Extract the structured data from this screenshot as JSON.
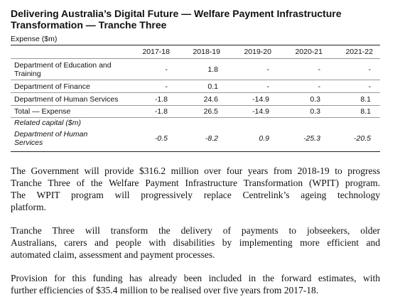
{
  "heading": {
    "line1": "Delivering Australia’s Digital Future — Welfare Payment Infrastructure",
    "line2": "Transformation — Tranche Three"
  },
  "table": {
    "unit_label": "Expense ($m)",
    "years": [
      "2017-18",
      "2018-19",
      "2019-20",
      "2020-21",
      "2021-22"
    ],
    "rows": [
      {
        "label_line1": "Department of Education and",
        "label_line2": "Training",
        "values": [
          "-",
          "1.8",
          "-",
          "-",
          "-"
        ]
      },
      {
        "label_line1": "Department of Finance",
        "label_line2": "",
        "values": [
          "-",
          "0.1",
          "-",
          "-",
          "-"
        ]
      },
      {
        "label_line1": "Department of Human Services",
        "label_line2": "",
        "values": [
          "-1.8",
          "24.6",
          "-14.9",
          "0.3",
          "8.1"
        ]
      },
      {
        "label_line1": "Total — Expense",
        "label_line2": "",
        "values": [
          "-1.8",
          "26.5",
          "-14.9",
          "0.3",
          "8.1"
        ]
      }
    ],
    "related_capital_label": "Related capital ($m)",
    "capital_row": {
      "label_line1": "Department of Human",
      "label_line2": "Services",
      "values": [
        "-0.5",
        "-8.2",
        "0.9",
        "-25.3",
        "-20.5"
      ]
    }
  },
  "paragraphs": [
    {
      "lines": [
        "The Government will provide $316.2 million over four years from 2018-19 to progress",
        "Tranche Three of the Welfare Payment Infrastructure Transformation (WPIT) program.",
        "The WPIT program will progressively replace Centrelink’s ageing technology",
        "platform."
      ]
    },
    {
      "lines": [
        "Tranche Three will transform the delivery of payments to jobseekers, older",
        "Australians, carers and people with disabilities by implementing more efficient and",
        "automated claim, assessment and payment processes."
      ]
    },
    {
      "lines": [
        "Provision for this funding has already been included in the forward estimates, with",
        "further efficiencies of $35.4 million to be realised over five years from 2017-18."
      ]
    }
  ]
}
